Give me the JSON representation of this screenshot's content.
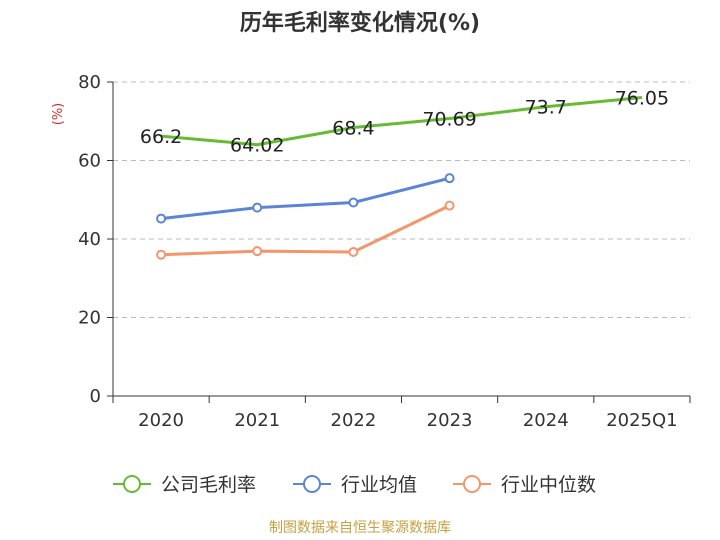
{
  "chart_data": {
    "type": "line",
    "title": "历年毛利率变化情况(%)",
    "unit_label": "(%)",
    "categories": [
      "2020",
      "2021",
      "2022",
      "2023",
      "2024",
      "2025Q1"
    ],
    "ylim": [
      0,
      80
    ],
    "yticks": [
      0,
      20,
      40,
      60,
      80
    ],
    "grid": true,
    "legend_position": "bottom",
    "series": [
      {
        "name": "公司毛利率",
        "color": "#66bb33",
        "marker": false,
        "show_labels": true,
        "values": [
          66.2,
          64.02,
          68.4,
          70.69,
          73.7,
          76.05
        ],
        "labels": [
          "66.2",
          "64.02",
          "68.4",
          "70.69",
          "73.7",
          "76.05"
        ]
      },
      {
        "name": "行业均值",
        "color": "#5b84d6",
        "marker": true,
        "show_labels": false,
        "values": [
          45.2,
          48.0,
          49.3,
          55.5,
          null,
          null
        ]
      },
      {
        "name": "行业中位数",
        "color": "#f4956a",
        "marker": true,
        "show_labels": false,
        "values": [
          36.0,
          36.9,
          36.7,
          48.5,
          null,
          null
        ]
      }
    ],
    "source": "制图数据来自恒生聚源数据库"
  }
}
